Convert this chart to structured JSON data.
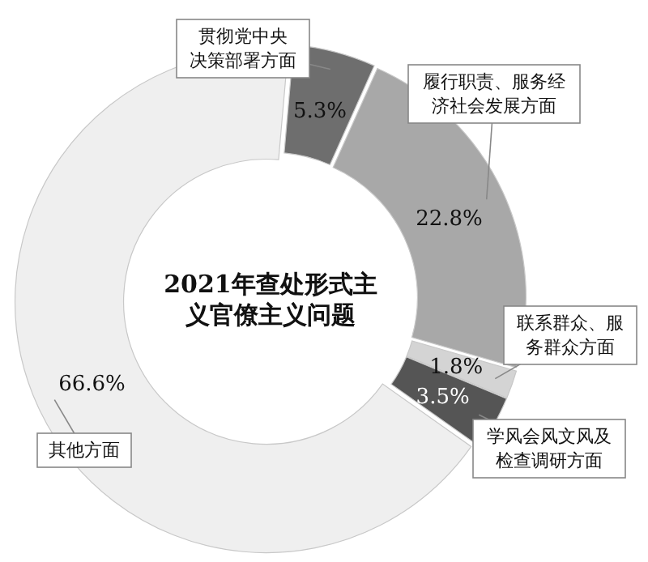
{
  "chart_data": {
    "type": "donut",
    "title": "2021年查处形式主义官僚主义问题",
    "categories": [
      "贯彻党中央决策部署方面",
      "履行职责、服务经济社会发展方面",
      "联系群众、服务群众方面",
      "学风会风文风及检查调研方面",
      "其他方面"
    ],
    "values": [
      5.3,
      22.8,
      1.8,
      3.5,
      66.6
    ],
    "value_labels": [
      "5.3%",
      "22.8%",
      "1.8%",
      "3.5%",
      "66.6%"
    ],
    "colors": [
      "#6e6e6e",
      "#a8a8a8",
      "#d4d4d4",
      "#555555",
      "#efefef"
    ],
    "legend": false
  }
}
